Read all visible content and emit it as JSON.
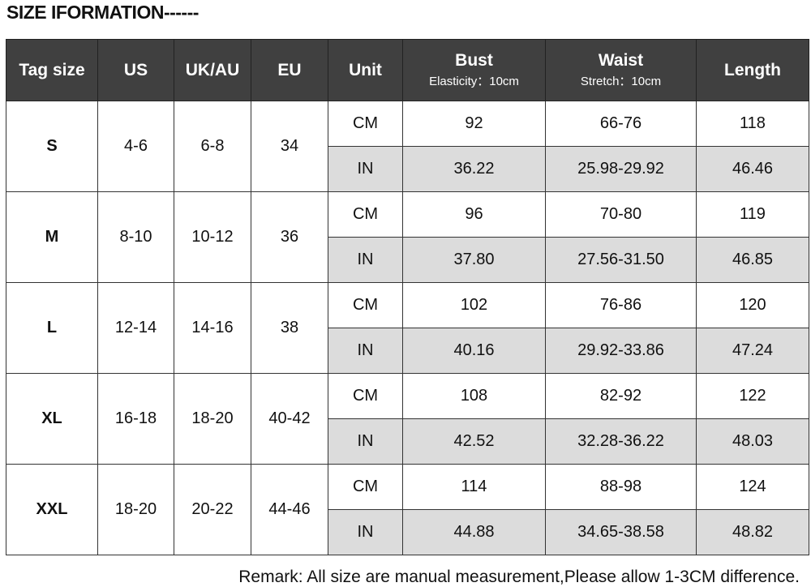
{
  "title": "SIZE IFORMATION------",
  "headers": {
    "tag": "Tag size",
    "us": "US",
    "ukau": "UK/AU",
    "eu": "EU",
    "unit": "Unit",
    "bust": "Bust",
    "bust_sub": "Elasticity：10cm",
    "waist": "Waist",
    "waist_sub": "Stretch：10cm",
    "length": "Length"
  },
  "rows": [
    {
      "tag": "S",
      "us": "4-6",
      "ukau": "6-8",
      "eu": "34",
      "cm": {
        "unit": "CM",
        "bust": "92",
        "waist": "66-76",
        "length": "118"
      },
      "in": {
        "unit": "IN",
        "bust": "36.22",
        "waist": "25.98-29.92",
        "length": "46.46"
      }
    },
    {
      "tag": "M",
      "us": "8-10",
      "ukau": "10-12",
      "eu": "36",
      "cm": {
        "unit": "CM",
        "bust": "96",
        "waist": "70-80",
        "length": "119"
      },
      "in": {
        "unit": "IN",
        "bust": "37.80",
        "waist": "27.56-31.50",
        "length": "46.85"
      }
    },
    {
      "tag": "L",
      "us": "12-14",
      "ukau": "14-16",
      "eu": "38",
      "cm": {
        "unit": "CM",
        "bust": "102",
        "waist": "76-86",
        "length": "120"
      },
      "in": {
        "unit": "IN",
        "bust": "40.16",
        "waist": "29.92-33.86",
        "length": "47.24"
      }
    },
    {
      "tag": "XL",
      "us": "16-18",
      "ukau": "18-20",
      "eu": "40-42",
      "cm": {
        "unit": "CM",
        "bust": "108",
        "waist": "82-92",
        "length": "122"
      },
      "in": {
        "unit": "IN",
        "bust": "42.52",
        "waist": "32.28-36.22",
        "length": "48.03"
      }
    },
    {
      "tag": "XXL",
      "us": "18-20",
      "ukau": "20-22",
      "eu": "44-46",
      "cm": {
        "unit": "CM",
        "bust": "114",
        "waist": "88-98",
        "length": "124"
      },
      "in": {
        "unit": "IN",
        "bust": "44.88",
        "waist": "34.65-38.58",
        "length": "48.82"
      }
    }
  ],
  "remark": "Remark: All size are manual measurement,Please allow 1-3CM difference.",
  "colors": {
    "header_bg": "#404040",
    "inch_row_bg": "#dcdcdc"
  }
}
